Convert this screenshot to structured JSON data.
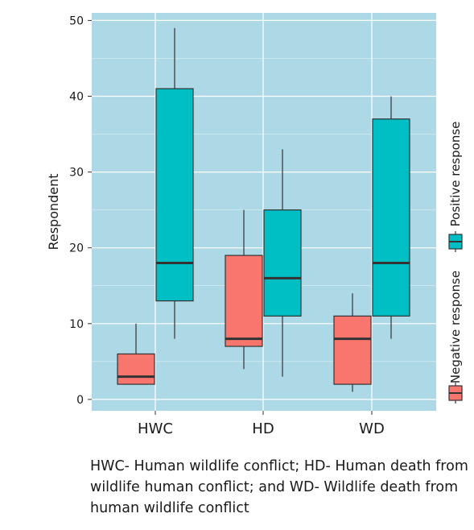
{
  "chart_data": {
    "type": "box",
    "categories": [
      "HWC",
      "HD",
      "WD"
    ],
    "ylabel": "Respondent",
    "ylim": [
      -1.5,
      51
    ],
    "yticks": [
      0,
      10,
      20,
      30,
      40,
      50
    ],
    "grid": true,
    "legend_position": "right",
    "series": [
      {
        "name": "Negative response",
        "color": "#f8766d",
        "boxes": [
          {
            "min": 2,
            "q1": 2,
            "median": 3,
            "q3": 6,
            "max": 10
          },
          {
            "min": 4,
            "q1": 7,
            "median": 8,
            "q3": 19,
            "max": 25
          },
          {
            "min": 1,
            "q1": 2,
            "median": 8,
            "q3": 11,
            "max": 14
          }
        ]
      },
      {
        "name": "Positive response",
        "color": "#00bfc4",
        "boxes": [
          {
            "min": 8,
            "q1": 13,
            "median": 18,
            "q3": 41,
            "max": 49
          },
          {
            "min": 3,
            "q1": 11,
            "median": 16,
            "q3": 25,
            "max": 33
          },
          {
            "min": 8,
            "q1": 11,
            "median": 18,
            "q3": 37,
            "max": 40
          }
        ]
      }
    ]
  },
  "caption": "HWC- Human wildlife conflict; HD- Human death from wildlife human conflict; and WD- Wildlife death from human wildlife conflict"
}
